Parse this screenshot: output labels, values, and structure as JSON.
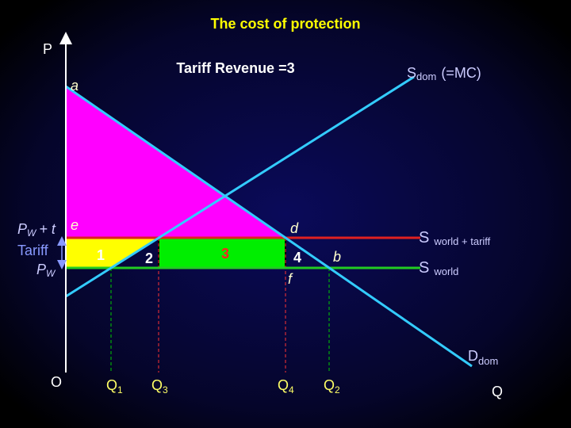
{
  "title": "The cost of protection",
  "subtitle": "Tariff Revenue =3",
  "axes": {
    "y_label": "P",
    "x_label": "Q",
    "origin": "O"
  },
  "curves": {
    "supply": {
      "main": "S",
      "sub": "dom",
      "suffix": "(=MC)"
    },
    "demand": {
      "main": "D",
      "sub": "dom"
    },
    "world_tariff": {
      "main": "S",
      "sub": "world + tariff"
    },
    "world": {
      "main": "S",
      "sub": "world"
    }
  },
  "prices": {
    "tariff_price": {
      "main": "P",
      "sub": "W",
      "suffix": "+ t"
    },
    "tariff": "Tariff",
    "world_price": {
      "main": "P",
      "sub": "W"
    }
  },
  "points": {
    "a": "a",
    "e": "e",
    "d": "d",
    "b": "b",
    "f": "f"
  },
  "areas": {
    "1": "1",
    "2": "2",
    "3": "3",
    "4": "4"
  },
  "quantities": [
    {
      "main": "Q",
      "sub": "1"
    },
    {
      "main": "Q",
      "sub": "3"
    },
    {
      "main": "Q",
      "sub": "4"
    },
    {
      "main": "Q",
      "sub": "2"
    }
  ]
}
